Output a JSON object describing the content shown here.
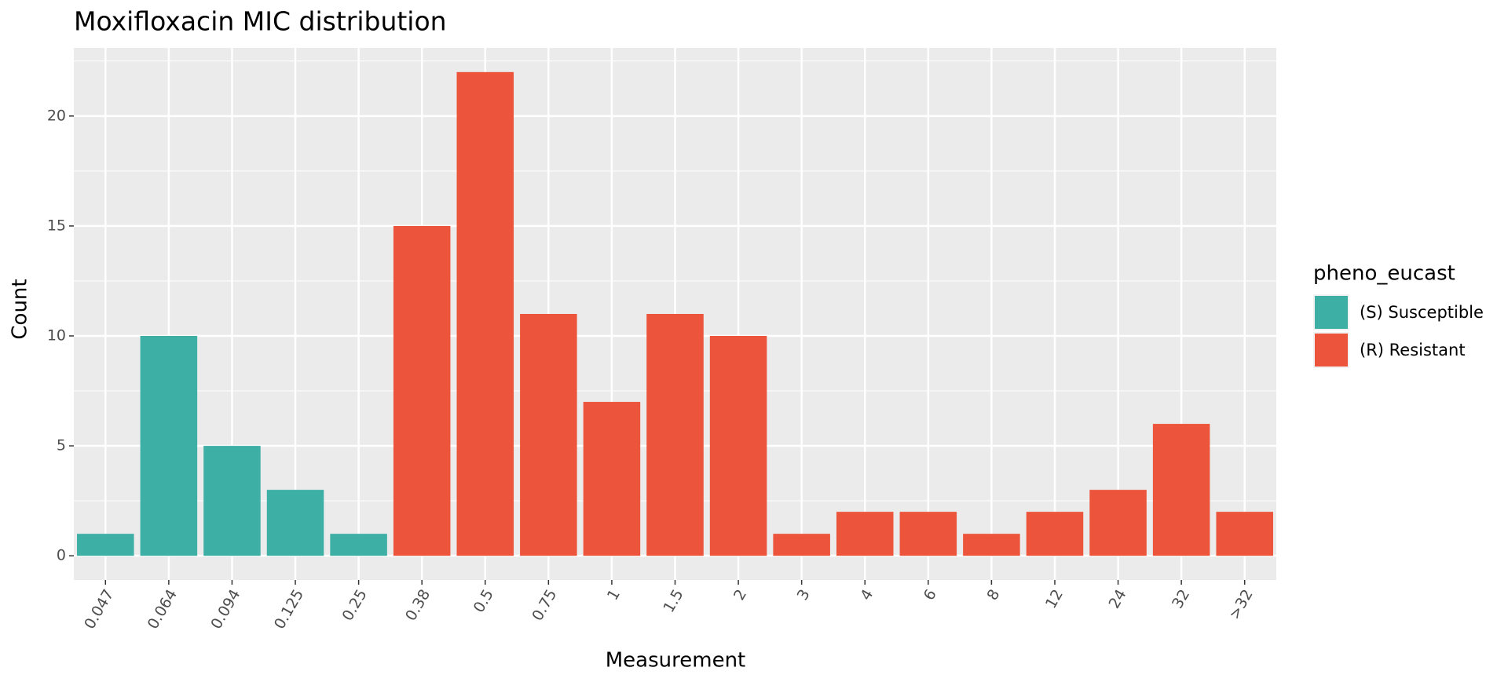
{
  "chart_data": {
    "type": "bar",
    "stacked": true,
    "title": "Moxifloxacin MIC distribution",
    "x_label": "Measurement",
    "y_label": "Count",
    "legend_title": "pheno_eucast",
    "legend_position": "right",
    "categories": [
      "0.047",
      "0.064",
      "0.094",
      "0.125",
      "0.25",
      "0.38",
      "0.5",
      "0.75",
      "1",
      "1.5",
      "2",
      "3",
      "4",
      "6",
      "8",
      "12",
      "24",
      "32",
      ">32"
    ],
    "series": [
      {
        "name": "(S) Susceptible",
        "color": "#3dafa5",
        "values": [
          1,
          10,
          5,
          3,
          1,
          null,
          null,
          null,
          null,
          null,
          null,
          null,
          null,
          null,
          null,
          null,
          null,
          null,
          null
        ]
      },
      {
        "name": "(R) Resistant",
        "color": "#ec553b",
        "values": [
          null,
          null,
          null,
          null,
          null,
          15,
          22,
          11,
          7,
          11,
          10,
          1,
          2,
          2,
          1,
          2,
          3,
          6,
          2
        ]
      }
    ],
    "ylim": [
      -1.1,
      23.1
    ],
    "yticks": [
      0,
      5,
      10,
      15,
      20
    ],
    "grid": true
  }
}
